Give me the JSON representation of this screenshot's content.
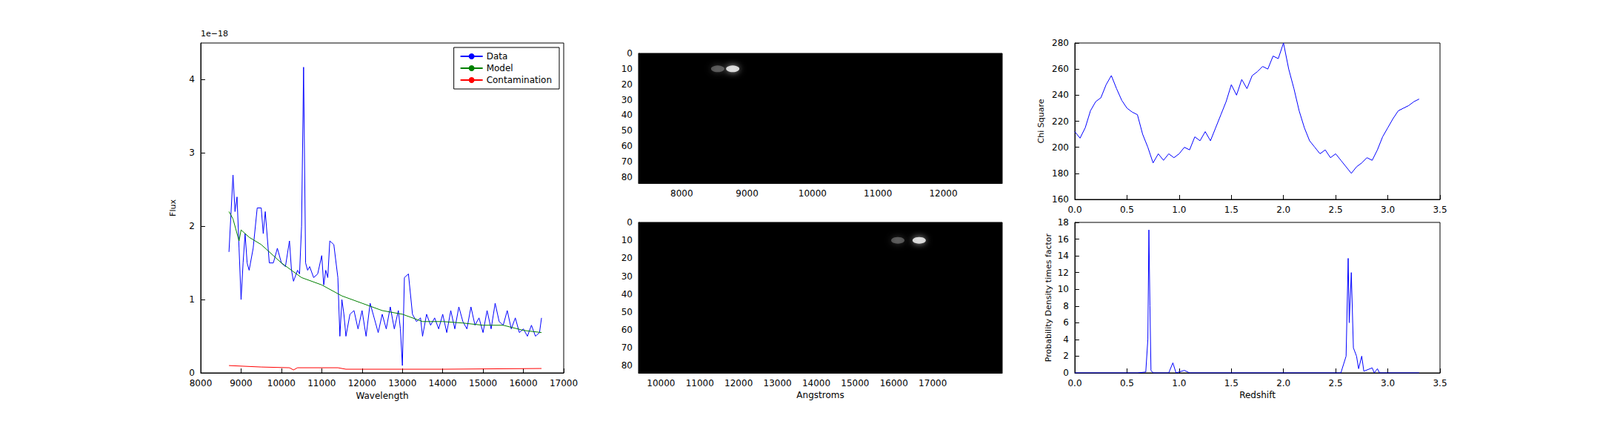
{
  "chart_data": [
    {
      "type": "line",
      "xlabel": "Wavelength",
      "ylabel": "Flux",
      "annotations": [
        "1e−18"
      ],
      "xlim": [
        8000,
        17000
      ],
      "xticks": [
        8000,
        9000,
        10000,
        11000,
        12000,
        13000,
        14000,
        15000,
        16000,
        17000
      ],
      "ylim": [
        0,
        4.5
      ],
      "yticks": [
        0,
        1,
        2,
        3,
        4
      ],
      "grid": false,
      "legend": "upper right",
      "series": [
        {
          "name": "Data",
          "color": "#0000ff",
          "x": [
            8700,
            8800,
            8850,
            8900,
            8950,
            9000,
            9050,
            9100,
            9150,
            9200,
            9300,
            9400,
            9500,
            9550,
            9600,
            9700,
            9800,
            9900,
            10000,
            10100,
            10200,
            10250,
            10300,
            10400,
            10450,
            10500,
            10550,
            10600,
            10650,
            10700,
            10800,
            10900,
            11000,
            11050,
            11100,
            11150,
            11200,
            11300,
            11400,
            11450,
            11500,
            11550,
            11600,
            11700,
            11800,
            11900,
            12000,
            12100,
            12200,
            12300,
            12400,
            12500,
            12600,
            12700,
            12800,
            12900,
            12950,
            13000,
            13050,
            13150,
            13250,
            13350,
            13450,
            13500,
            13600,
            13700,
            13800,
            13900,
            14000,
            14100,
            14200,
            14300,
            14400,
            14500,
            14600,
            14700,
            14800,
            14900,
            15000,
            15100,
            15200,
            15300,
            15400,
            15500,
            15600,
            15700,
            15800,
            15900,
            16000,
            16100,
            16200,
            16300,
            16400,
            16450
          ],
          "values": [
            1.65,
            2.7,
            2.2,
            2.4,
            1.7,
            1.0,
            1.5,
            1.9,
            1.5,
            1.4,
            1.7,
            2.25,
            2.25,
            1.9,
            2.2,
            1.5,
            1.5,
            1.7,
            1.5,
            1.45,
            1.8,
            1.4,
            1.25,
            1.4,
            1.35,
            2.0,
            4.17,
            1.5,
            1.4,
            1.45,
            1.3,
            1.35,
            1.6,
            1.2,
            1.4,
            1.3,
            1.8,
            1.75,
            1.3,
            0.5,
            1.0,
            0.8,
            0.5,
            0.8,
            0.85,
            0.6,
            0.85,
            0.5,
            0.95,
            0.75,
            0.55,
            0.8,
            0.6,
            0.9,
            0.6,
            0.85,
            0.6,
            0.1,
            1.3,
            1.35,
            0.8,
            0.7,
            0.75,
            0.5,
            0.8,
            0.65,
            0.75,
            0.6,
            0.8,
            0.55,
            0.85,
            0.6,
            0.9,
            0.7,
            0.6,
            0.9,
            0.65,
            0.75,
            0.55,
            0.85,
            0.6,
            0.95,
            0.7,
            0.65,
            0.85,
            0.6,
            0.75,
            0.55,
            0.6,
            0.5,
            0.65,
            0.5,
            0.55,
            0.75
          ]
        },
        {
          "name": "Model",
          "color": "#008000",
          "x": [
            8700,
            8800,
            8950,
            9000,
            9200,
            9500,
            10000,
            10500,
            11000,
            11500,
            12000,
            12500,
            13000,
            13500,
            14000,
            14500,
            15000,
            15500,
            16000,
            16450
          ],
          "values": [
            2.2,
            2.1,
            1.8,
            1.95,
            1.85,
            1.75,
            1.5,
            1.3,
            1.2,
            1.05,
            0.95,
            0.85,
            0.8,
            0.7,
            0.7,
            0.68,
            0.65,
            0.65,
            0.58,
            0.55
          ]
        },
        {
          "name": "Contamination",
          "color": "#ff0000",
          "x": [
            8700,
            9500,
            10200,
            10300,
            10400,
            11400,
            11600,
            13000,
            14000,
            16450
          ],
          "values": [
            0.1,
            0.08,
            0.07,
            0.04,
            0.07,
            0.07,
            0.05,
            0.05,
            0.05,
            0.06
          ]
        }
      ]
    },
    {
      "type": "image",
      "xlim": [
        7340,
        12900
      ],
      "xticks": [
        8000,
        9000,
        10000,
        11000,
        12000
      ],
      "ylim": [
        84,
        0
      ],
      "yticks": [
        0,
        10,
        20,
        30,
        40,
        50,
        60,
        70,
        80
      ],
      "grid": false,
      "x": [
        8550,
        8780
      ],
      "y": [
        10,
        10
      ],
      "values": [
        0.35,
        1
      ]
    },
    {
      "type": "image",
      "xlabel": "Angstroms",
      "xlim": [
        9420,
        18790
      ],
      "xticks": [
        10000,
        11000,
        12000,
        13000,
        14000,
        15000,
        16000,
        17000
      ],
      "ylim": [
        84,
        0
      ],
      "yticks": [
        0,
        10,
        20,
        30,
        40,
        50,
        60,
        70,
        80
      ],
      "grid": false,
      "x": [
        16100,
        16650
      ],
      "y": [
        10,
        10
      ],
      "values": [
        0.35,
        1
      ]
    },
    {
      "type": "line",
      "ylabel": "Chi Square",
      "xlim": [
        0,
        3.5
      ],
      "xticks": [
        {
          "value": 0,
          "label": "0.0"
        },
        0.5,
        {
          "value": 1,
          "label": "1.0"
        },
        1.5,
        {
          "value": 2,
          "label": "2.0"
        },
        2.5,
        {
          "value": 3,
          "label": "3.0"
        },
        3.5
      ],
      "ylim": [
        160,
        280
      ],
      "yticks": [
        160,
        180,
        200,
        220,
        240,
        260,
        280
      ],
      "grid": false,
      "series": [
        {
          "name": "Chi Square",
          "color": "#0000ff",
          "x": [
            0,
            0.05,
            0.1,
            0.15,
            0.2,
            0.25,
            0.3,
            0.35,
            0.4,
            0.45,
            0.5,
            0.55,
            0.6,
            0.65,
            0.7,
            0.75,
            0.8,
            0.85,
            0.9,
            0.95,
            1.0,
            1.05,
            1.1,
            1.15,
            1.2,
            1.25,
            1.3,
            1.35,
            1.4,
            1.45,
            1.5,
            1.55,
            1.6,
            1.65,
            1.7,
            1.75,
            1.8,
            1.85,
            1.9,
            1.95,
            2.0,
            2.05,
            2.1,
            2.15,
            2.2,
            2.25,
            2.3,
            2.35,
            2.4,
            2.45,
            2.5,
            2.55,
            2.6,
            2.65,
            2.7,
            2.75,
            2.8,
            2.85,
            2.9,
            2.95,
            3.0,
            3.05,
            3.1,
            3.15,
            3.2,
            3.25,
            3.3
          ],
          "values": [
            212,
            207,
            215,
            228,
            235,
            238,
            248,
            255,
            245,
            236,
            230,
            227,
            225,
            210,
            200,
            188,
            195,
            190,
            195,
            192,
            195,
            200,
            198,
            208,
            205,
            212,
            205,
            215,
            225,
            235,
            248,
            240,
            252,
            245,
            255,
            258,
            262,
            260,
            270,
            268,
            280,
            260,
            245,
            228,
            215,
            205,
            200,
            195,
            198,
            192,
            195,
            190,
            185,
            180,
            185,
            188,
            192,
            190,
            198,
            208,
            215,
            222,
            228,
            230,
            232,
            235,
            237
          ]
        }
      ]
    },
    {
      "type": "line",
      "xlabel": "Redshift",
      "ylabel": "Probability Density times factor",
      "xlim": [
        0,
        3.5
      ],
      "xticks": [
        {
          "value": 0,
          "label": "0.0"
        },
        0.5,
        {
          "value": 1,
          "label": "1.0"
        },
        1.5,
        {
          "value": 2,
          "label": "2.0"
        },
        2.5,
        {
          "value": 3,
          "label": "3.0"
        },
        3.5
      ],
      "ylim": [
        0,
        18
      ],
      "yticks": [
        0,
        2,
        4,
        6,
        8,
        10,
        12,
        14,
        16,
        18
      ],
      "grid": false,
      "series": [
        {
          "name": "Probability Density",
          "color": "#0000ff",
          "x": [
            0,
            0.6,
            0.68,
            0.7,
            0.71,
            0.72,
            0.73,
            0.75,
            0.9,
            0.94,
            0.97,
            1.05,
            1.1,
            2.55,
            2.6,
            2.62,
            2.63,
            2.65,
            2.67,
            2.7,
            2.72,
            2.75,
            2.77,
            2.85,
            2.87,
            2.9,
            2.92,
            3.3
          ],
          "values": [
            0,
            0,
            0.1,
            4,
            17.1,
            8,
            0.3,
            0,
            0,
            1.2,
            0,
            0.3,
            0,
            0,
            2,
            13.7,
            6,
            12,
            3,
            2,
            0.5,
            2,
            0.2,
            0.6,
            0,
            0.5,
            0,
            0
          ]
        }
      ]
    }
  ]
}
